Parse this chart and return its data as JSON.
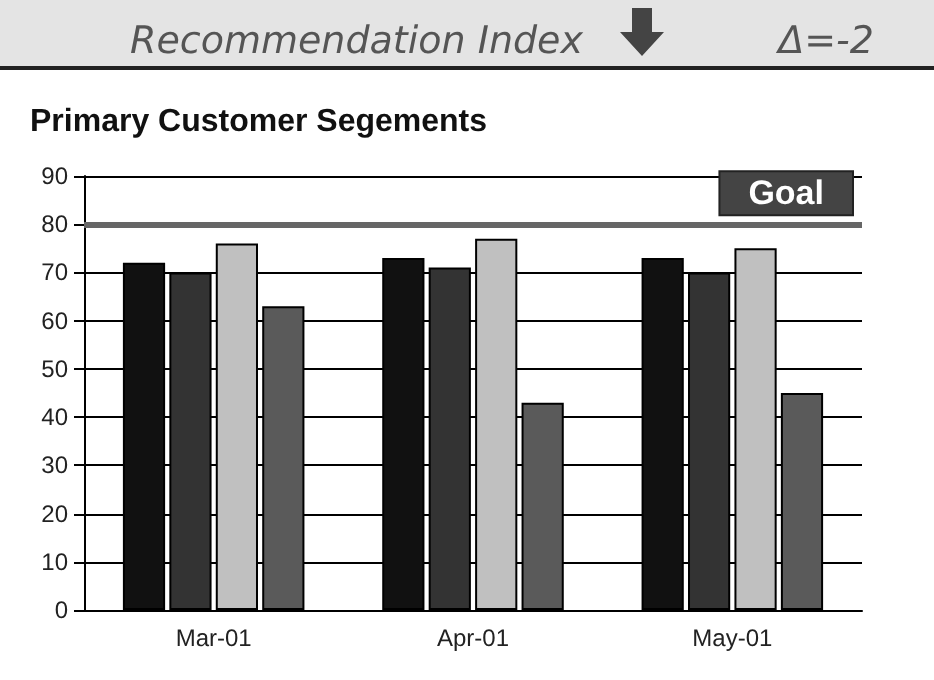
{
  "chart_data": {
    "type": "bar",
    "title": "Recommendation Index",
    "subtitle": "Primary Customer Segements",
    "annotations": [
      "Δ=-2"
    ],
    "categories": [
      "Mar-01",
      "Apr-01",
      "May-01"
    ],
    "series": [
      {
        "color": "#111111",
        "values": [
          72,
          73,
          73
        ]
      },
      {
        "color": "#333333",
        "values": [
          70,
          71,
          70
        ]
      },
      {
        "color": "#c0c0c0",
        "values": [
          76,
          77,
          75
        ]
      },
      {
        "color": "#5a5a5a",
        "values": [
          63,
          43,
          45
        ]
      }
    ],
    "ylim": [
      0,
      90
    ],
    "yticks": [
      0,
      10,
      20,
      30,
      40,
      50,
      60,
      70,
      80,
      90
    ],
    "grid": "y",
    "ref_lines": [
      {
        "axis": "y",
        "value": 80,
        "label": "Goal",
        "color": "#666666"
      }
    ]
  }
}
